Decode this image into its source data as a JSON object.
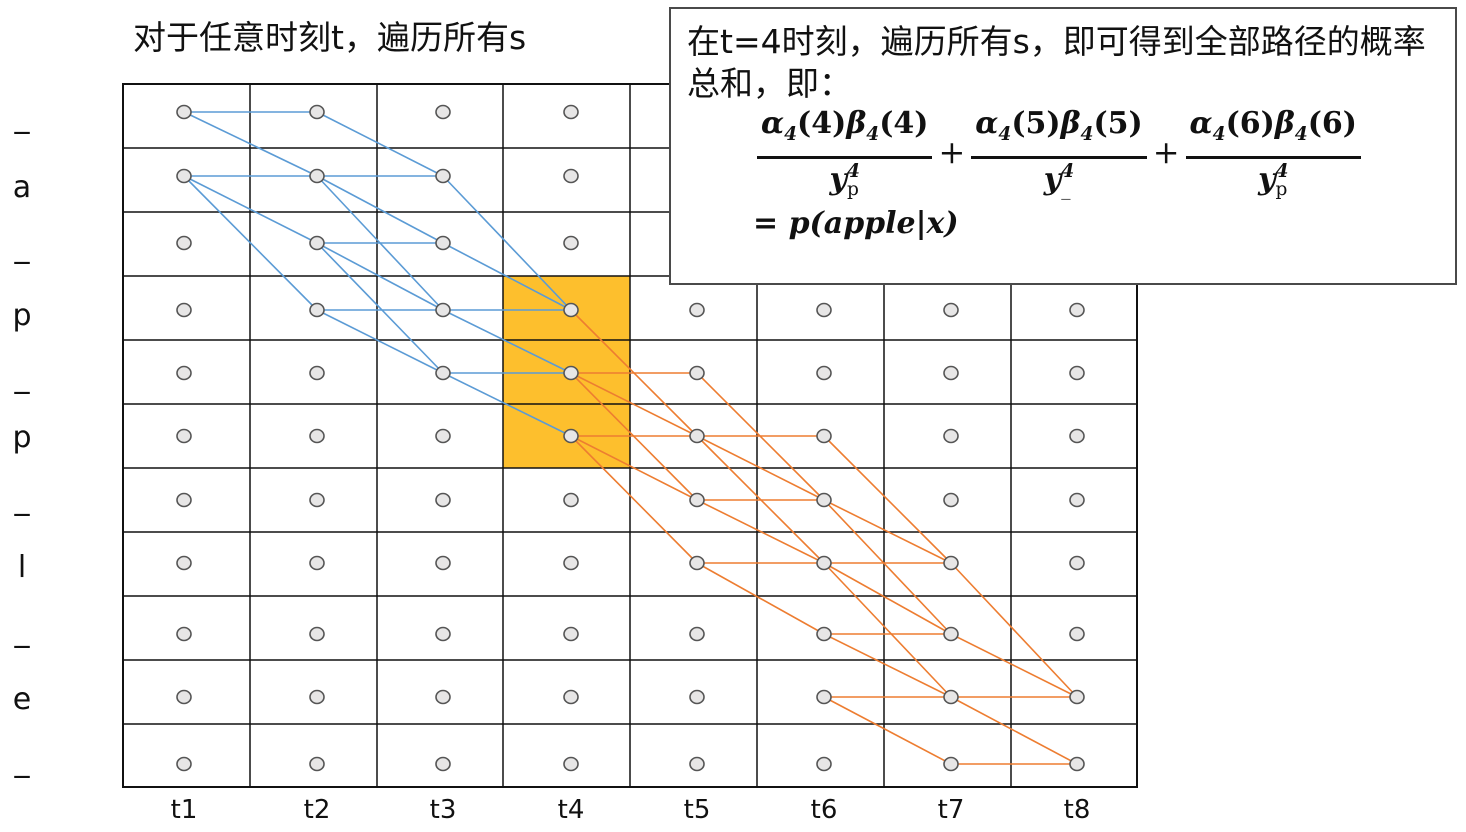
{
  "title": "对于任意时刻t，遍历所有s",
  "callout": {
    "text": "在t=4时刻，遍历所有s，即可得到全部路径的概率总和，即：",
    "terms": [
      {
        "num_a": "α",
        "num_a_sub": "4",
        "num_a_arg": "(4)",
        "num_b": "β",
        "num_b_sub": "4",
        "num_b_arg": "(4)",
        "den": "y",
        "den_sup": "4",
        "den_sub": "p"
      },
      {
        "num_a": "α",
        "num_a_sub": "4",
        "num_a_arg": "(5)",
        "num_b": "β",
        "num_b_sub": "4",
        "num_b_arg": "(5)",
        "den": "y",
        "den_sup": "4",
        "den_sub": "_"
      },
      {
        "num_a": "α",
        "num_a_sub": "4",
        "num_a_arg": "(6)",
        "num_b": "β",
        "num_b_sub": "4",
        "num_b_arg": "(6)",
        "den": "y",
        "den_sup": "4",
        "den_sub": "p"
      }
    ],
    "plus": "+",
    "result": "= p(apple|x)"
  },
  "y_labels": [
    "_",
    "a",
    "_",
    "p",
    "_",
    "p",
    "_",
    "l",
    "_",
    "e",
    "_"
  ],
  "x_labels": [
    "t1",
    "t2",
    "t3",
    "t4",
    "t5",
    "t6",
    "t7",
    "t8"
  ],
  "highlight": {
    "column": 4,
    "rows": [
      4,
      5,
      6
    ],
    "color": "#fdbf2d"
  },
  "colors": {
    "forward": "#5b9bd5",
    "backward": "#ed7d31",
    "grid": "#111111",
    "node_fill": "#e7e6e6",
    "node_stroke": "#555555"
  },
  "forward_edges": [
    [
      1,
      1,
      2,
      1
    ],
    [
      1,
      1,
      2,
      2
    ],
    [
      1,
      2,
      2,
      2
    ],
    [
      1,
      2,
      2,
      3
    ],
    [
      1,
      2,
      2,
      4
    ],
    [
      2,
      1,
      3,
      2
    ],
    [
      2,
      2,
      3,
      2
    ],
    [
      2,
      2,
      3,
      3
    ],
    [
      2,
      2,
      3,
      4
    ],
    [
      2,
      3,
      3,
      3
    ],
    [
      2,
      3,
      3,
      4
    ],
    [
      2,
      3,
      3,
      5
    ],
    [
      2,
      4,
      3,
      4
    ],
    [
      2,
      4,
      3,
      5
    ],
    [
      3,
      2,
      4,
      4
    ],
    [
      3,
      3,
      4,
      4
    ],
    [
      3,
      4,
      4,
      4
    ],
    [
      3,
      4,
      4,
      5
    ],
    [
      3,
      5,
      4,
      5
    ],
    [
      3,
      5,
      4,
      6
    ]
  ],
  "backward_edges": [
    [
      4,
      4,
      5,
      6
    ],
    [
      4,
      5,
      5,
      5
    ],
    [
      4,
      5,
      5,
      6
    ],
    [
      4,
      5,
      5,
      7
    ],
    [
      4,
      6,
      5,
      6
    ],
    [
      4,
      6,
      5,
      7
    ],
    [
      4,
      6,
      5,
      8
    ],
    [
      5,
      5,
      6,
      7
    ],
    [
      5,
      6,
      6,
      6
    ],
    [
      5,
      6,
      6,
      7
    ],
    [
      5,
      6,
      6,
      8
    ],
    [
      5,
      7,
      6,
      7
    ],
    [
      5,
      7,
      6,
      8
    ],
    [
      5,
      8,
      6,
      8
    ],
    [
      5,
      8,
      6,
      9
    ],
    [
      6,
      6,
      7,
      8
    ],
    [
      6,
      7,
      7,
      8
    ],
    [
      6,
      7,
      7,
      9
    ],
    [
      6,
      8,
      7,
      8
    ],
    [
      6,
      8,
      7,
      9
    ],
    [
      6,
      8,
      7,
      10
    ],
    [
      6,
      9,
      7,
      9
    ],
    [
      6,
      9,
      7,
      10
    ],
    [
      6,
      10,
      7,
      10
    ],
    [
      6,
      10,
      7,
      11
    ],
    [
      7,
      8,
      8,
      10
    ],
    [
      7,
      9,
      8,
      10
    ],
    [
      7,
      10,
      8,
      10
    ],
    [
      7,
      10,
      8,
      11
    ],
    [
      7,
      11,
      8,
      11
    ]
  ]
}
